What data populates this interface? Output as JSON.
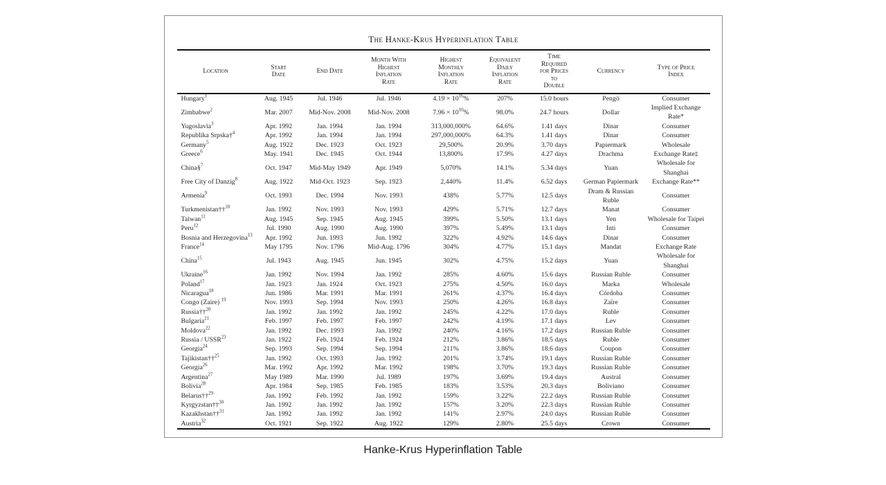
{
  "figure": {
    "title": "The Hanke-Krus Hyperinflation Table",
    "caption": "Hanke-Krus Hyperinflation Table",
    "columns": [
      {
        "key": "location",
        "label": "Location"
      },
      {
        "key": "start-date",
        "label": "Start\nDate"
      },
      {
        "key": "end-date",
        "label": "End Date"
      },
      {
        "key": "month-highest",
        "label": "Month With\nHighest\nInflation\nRate"
      },
      {
        "key": "highest-monthly",
        "label": "Highest\nMonthly\nInflation\nRate"
      },
      {
        "key": "equivalent-daily",
        "label": "Equivalent\nDaily\nInflation\nRate"
      },
      {
        "key": "time-to-double",
        "label": "Time\nRequired\nfor Prices\nto\nDouble"
      },
      {
        "key": "currency",
        "label": "Currency"
      },
      {
        "key": "price-index",
        "label": "Type of Price\nIndex"
      }
    ],
    "rows": [
      [
        "Hungary^1^",
        "Aug. 1945",
        "Jul. 1946",
        "Jul. 1946",
        "4.19 × 10^16^%",
        "207%",
        "15.0 hours",
        "Pengö",
        "Consumer"
      ],
      [
        "Zimbabwe^2^",
        "Mar. 2007",
        "Mid-Nov. 2008",
        "Mid-Nov. 2008",
        "7.96 × 10^10^%",
        "98.0%",
        "24.7 hours",
        "Dollar",
        "Implied Exchange Rate*"
      ],
      [
        "Yugoslavia^3^",
        "Apr. 1992",
        "Jan. 1994",
        "Jan. 1994",
        "313,000,000%",
        "64.6%",
        "1.41 days",
        "Dinar",
        "Consumer"
      ],
      [
        "Republika Srpska†^4^",
        "Apr. 1992",
        "Jan. 1994",
        "Jan. 1994",
        "297,000,000%",
        "64.3%",
        "1.41 days",
        "Dinar",
        "Consumer"
      ],
      [
        "Germany^5^",
        "Aug. 1922",
        "Dec. 1923",
        "Oct. 1923",
        "29,500%",
        "20.9%",
        "3.70 days",
        "Papiermark",
        "Wholesale"
      ],
      [
        "Greece^6^",
        "May. 1941",
        "Dec. 1945",
        "Oct. 1944",
        "13,800%",
        "17.9%",
        "4.27 days",
        "Drachma",
        "Exchange Rate‡"
      ],
      [
        "China§^7^",
        "Oct. 1947",
        "Mid-May 1949",
        "Apr. 1949",
        "5,070%",
        "14.1%",
        "5.34 days",
        "Yuan",
        "Wholesale for Shanghai"
      ],
      [
        "Free City of Danzig^8^",
        "Aug. 1922",
        "Mid-Oct. 1923",
        "Sep. 1923",
        "2,440%",
        "11.4%",
        "6.52 days",
        "German Papiermark",
        "Exchange Rate**"
      ],
      [
        "Armenia^9^",
        "Oct. 1993",
        "Dec. 1994",
        "Nov. 1993",
        "438%",
        "5.77%",
        "12.5 days",
        "Dram & Russian Ruble",
        "Consumer"
      ],
      [
        "Turkmenistan††^10^",
        "Jan. 1992",
        "Nov. 1993",
        "Nov. 1993",
        "429%",
        "5.71%",
        "12.7 days",
        "Manat",
        "Consumer"
      ],
      [
        "Taiwan^11^",
        "Aug. 1945",
        "Sep. 1945",
        "Aug. 1945",
        "399%",
        "5.50%",
        "13.1 days",
        "Yen",
        "Wholesale for Taipei"
      ],
      [
        "Peru^12^",
        "Jul. 1990",
        "Aug. 1990",
        "Aug. 1990",
        "397%",
        "5.49%",
        "13.1 days",
        "Inti",
        "Consumer"
      ],
      [
        "Bosnia and Herzegovina^13^",
        "Apr. 1992",
        "Jun. 1993",
        "Jun. 1992",
        "322%",
        "4.92%",
        "14.6 days",
        "Dinar",
        "Consumer"
      ],
      [
        "France^14^",
        "May 1795",
        "Nov. 1796",
        "Mid-Aug. 1796",
        "304%",
        "4.77%",
        "15.1 days",
        "Mandat",
        "Exchange Rate"
      ],
      [
        "China^15^",
        "Jul. 1943",
        "Aug. 1945",
        "Jun. 1945",
        "302%",
        "4.75%",
        "15.2 days",
        "Yuan",
        "Wholesale for Shanghai"
      ],
      [
        "Ukraine^16^",
        "Jan. 1992",
        "Nov. 1994",
        "Jan. 1992",
        "285%",
        "4.60%",
        "15.6 days",
        "Russian Ruble",
        "Consumer"
      ],
      [
        "Poland^17^",
        "Jan. 1923",
        "Jan. 1924",
        "Oct. 1923",
        "275%",
        "4.50%",
        "16.0 days",
        "Marka",
        "Wholesale"
      ],
      [
        "Nicaragua^18^",
        "Jun. 1986",
        "Mar. 1991",
        "Mar. 1991",
        "261%",
        "4.37%",
        "16.4 days",
        "Córdoba",
        "Consumer"
      ],
      [
        "Congo (Zaire) ^19^",
        "Nov. 1993",
        "Sep. 1994",
        "Nov. 1993",
        "250%",
        "4.26%",
        "16.8 days",
        "Zaïre",
        "Consumer"
      ],
      [
        "Russia††^20^",
        "Jan. 1992",
        "Jan. 1992",
        "Jan. 1992",
        "245%",
        "4.22%",
        "17.0 days",
        "Ruble",
        "Consumer"
      ],
      [
        "Bulgaria^21^",
        "Feb. 1997",
        "Feb. 1997",
        "Feb. 1997",
        "242%",
        "4.19%",
        "17.1 days",
        "Lev",
        "Consumer"
      ],
      [
        "Moldova^22^",
        "Jan. 1992",
        "Dec. 1993",
        "Jan. 1992",
        "240%",
        "4.16%",
        "17.2 days",
        "Russian Ruble",
        "Consumer"
      ],
      [
        "Russia / USSR^23^",
        "Jan. 1922",
        "Feb. 1924",
        "Feb. 1924",
        "212%",
        "3.86%",
        "18.5 days",
        "Ruble",
        "Consumer"
      ],
      [
        "Georgia^24^",
        "Sep. 1993",
        "Sep. 1994",
        "Sep. 1994",
        "211%",
        "3.86%",
        "18.6 days",
        "Coupon",
        "Consumer"
      ],
      [
        "Tajikistan††^25^",
        "Jan. 1992",
        "Oct. 1993",
        "Jan. 1992",
        "201%",
        "3.74%",
        "19.1 days",
        "Russian Ruble",
        "Consumer"
      ],
      [
        "Georgia^26^",
        "Mar. 1992",
        "Apr. 1992",
        "Mar. 1992",
        "198%",
        "3.70%",
        "19.3 days",
        "Russian Ruble",
        "Consumer"
      ],
      [
        "Argentina^27^",
        "May 1989",
        "Mar. 1990",
        "Jul. 1989",
        "197%",
        "3.69%",
        "19.4 days",
        "Austral",
        "Consumer"
      ],
      [
        "Bolivia^28^",
        "Apr. 1984",
        "Sep. 1985",
        "Feb. 1985",
        "183%",
        "3.53%",
        "20.3 days",
        "Boliviano",
        "Consumer"
      ],
      [
        "Belarus††^29^",
        "Jan. 1992",
        "Feb. 1992",
        "Jan. 1992",
        "159%",
        "3.22%",
        "22.2 days",
        "Russian Ruble",
        "Consumer"
      ],
      [
        "Kyrgyzstan††^30^",
        "Jan. 1992",
        "Jan. 1992",
        "Jan. 1992",
        "157%",
        "3.20%",
        "22.3 days",
        "Russian Ruble",
        "Consumer"
      ],
      [
        "Kazakhstan††^31^",
        "Jan. 1992",
        "Jan. 1992",
        "Jan. 1992",
        "141%",
        "2.97%",
        "24.0 days",
        "Russian Ruble",
        "Consumer"
      ],
      [
        "Austria^32^",
        "Oct. 1921",
        "Sep. 1922",
        "Aug. 1922",
        "129%",
        "2.80%",
        "25.5 days",
        "Crown",
        "Consumer"
      ]
    ]
  }
}
